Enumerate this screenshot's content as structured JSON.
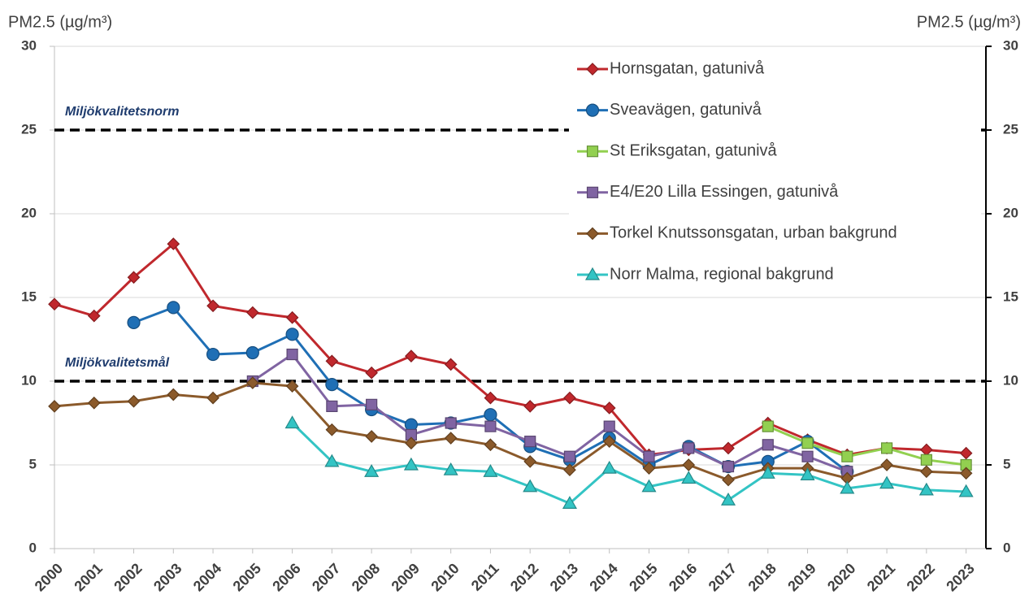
{
  "chart_data": {
    "type": "line",
    "y_label": "PM2.5 (µg/m³)",
    "y2_label": "PM2.5 (µg/m³)",
    "x": [
      2000,
      2001,
      2002,
      2003,
      2004,
      2005,
      2006,
      2007,
      2008,
      2009,
      2010,
      2011,
      2012,
      2013,
      2014,
      2015,
      2016,
      2017,
      2018,
      2019,
      2020,
      2021,
      2022,
      2023
    ],
    "xlim": [
      2000,
      2023.5
    ],
    "xticks": [
      2000,
      2001,
      2002,
      2003,
      2004,
      2005,
      2006,
      2007,
      2008,
      2009,
      2010,
      2011,
      2012,
      2013,
      2014,
      2015,
      2016,
      2017,
      2018,
      2019,
      2020,
      2021,
      2022,
      2023
    ],
    "ylim": [
      0,
      30
    ],
    "yticks": [
      0,
      5,
      10,
      15,
      20,
      25,
      30
    ],
    "y2lim": [
      0,
      30
    ],
    "y2ticks": [
      0,
      5,
      10,
      15,
      20,
      25,
      30
    ],
    "grid": true,
    "legend": "top-right",
    "reference_lines": [
      {
        "value": 25,
        "label": "Miljökvalitetsnorm"
      },
      {
        "value": 10,
        "label": "Miljökvalitetsmål"
      }
    ],
    "series": [
      {
        "name": "Hornsgatan, gatunivå",
        "color": "#c0282d",
        "marker": "diamond",
        "values": [
          14.6,
          13.9,
          16.2,
          18.2,
          14.5,
          14.1,
          13.8,
          11.2,
          10.5,
          11.5,
          11.0,
          9.0,
          8.5,
          9.0,
          8.4,
          5.6,
          5.9,
          6.0,
          7.5,
          6.5,
          5.6,
          6.0,
          5.9,
          5.7
        ]
      },
      {
        "name": "Sveavägen, gatunivå",
        "color": "#1f6fb5",
        "marker": "circle",
        "values": [
          null,
          null,
          13.5,
          14.4,
          11.6,
          11.7,
          12.8,
          9.8,
          8.3,
          7.4,
          7.5,
          8.0,
          6.1,
          5.3,
          6.6,
          5.0,
          6.1,
          4.9,
          5.2,
          6.4,
          4.6,
          null,
          null,
          null
        ]
      },
      {
        "name": "St Eriksgatan, gatunivå",
        "color": "#92d050",
        "marker": "square",
        "values": [
          null,
          null,
          null,
          null,
          null,
          null,
          null,
          null,
          null,
          null,
          null,
          null,
          null,
          null,
          null,
          null,
          null,
          null,
          7.3,
          6.3,
          5.5,
          6.0,
          5.3,
          5.0
        ]
      },
      {
        "name": "E4/E20 Lilla Essingen, gatunivå",
        "color": "#8064a2",
        "marker": "square",
        "values": [
          null,
          null,
          null,
          null,
          null,
          10.0,
          11.6,
          8.5,
          8.6,
          6.8,
          7.5,
          7.3,
          6.4,
          5.5,
          7.3,
          5.5,
          6.0,
          4.9,
          6.2,
          5.5,
          4.6,
          null,
          null,
          null
        ]
      },
      {
        "name": "Torkel Knutssonsgatan, urban bakgrund",
        "color": "#8b5a2b",
        "marker": "diamond",
        "values": [
          8.5,
          8.7,
          8.8,
          9.2,
          9.0,
          9.9,
          9.7,
          7.1,
          6.7,
          6.3,
          6.6,
          6.2,
          5.2,
          4.7,
          6.4,
          4.8,
          5.0,
          4.1,
          4.8,
          4.8,
          4.2,
          5.0,
          4.6,
          4.5
        ]
      },
      {
        "name": "Norr Malma, regional bakgrund",
        "color": "#33c4c4",
        "marker": "triangle",
        "values": [
          null,
          null,
          null,
          null,
          null,
          null,
          7.5,
          5.2,
          4.6,
          5.0,
          4.7,
          4.6,
          3.7,
          2.7,
          4.8,
          3.7,
          4.2,
          2.9,
          4.5,
          4.4,
          3.6,
          3.9,
          3.5,
          3.4
        ]
      }
    ]
  }
}
